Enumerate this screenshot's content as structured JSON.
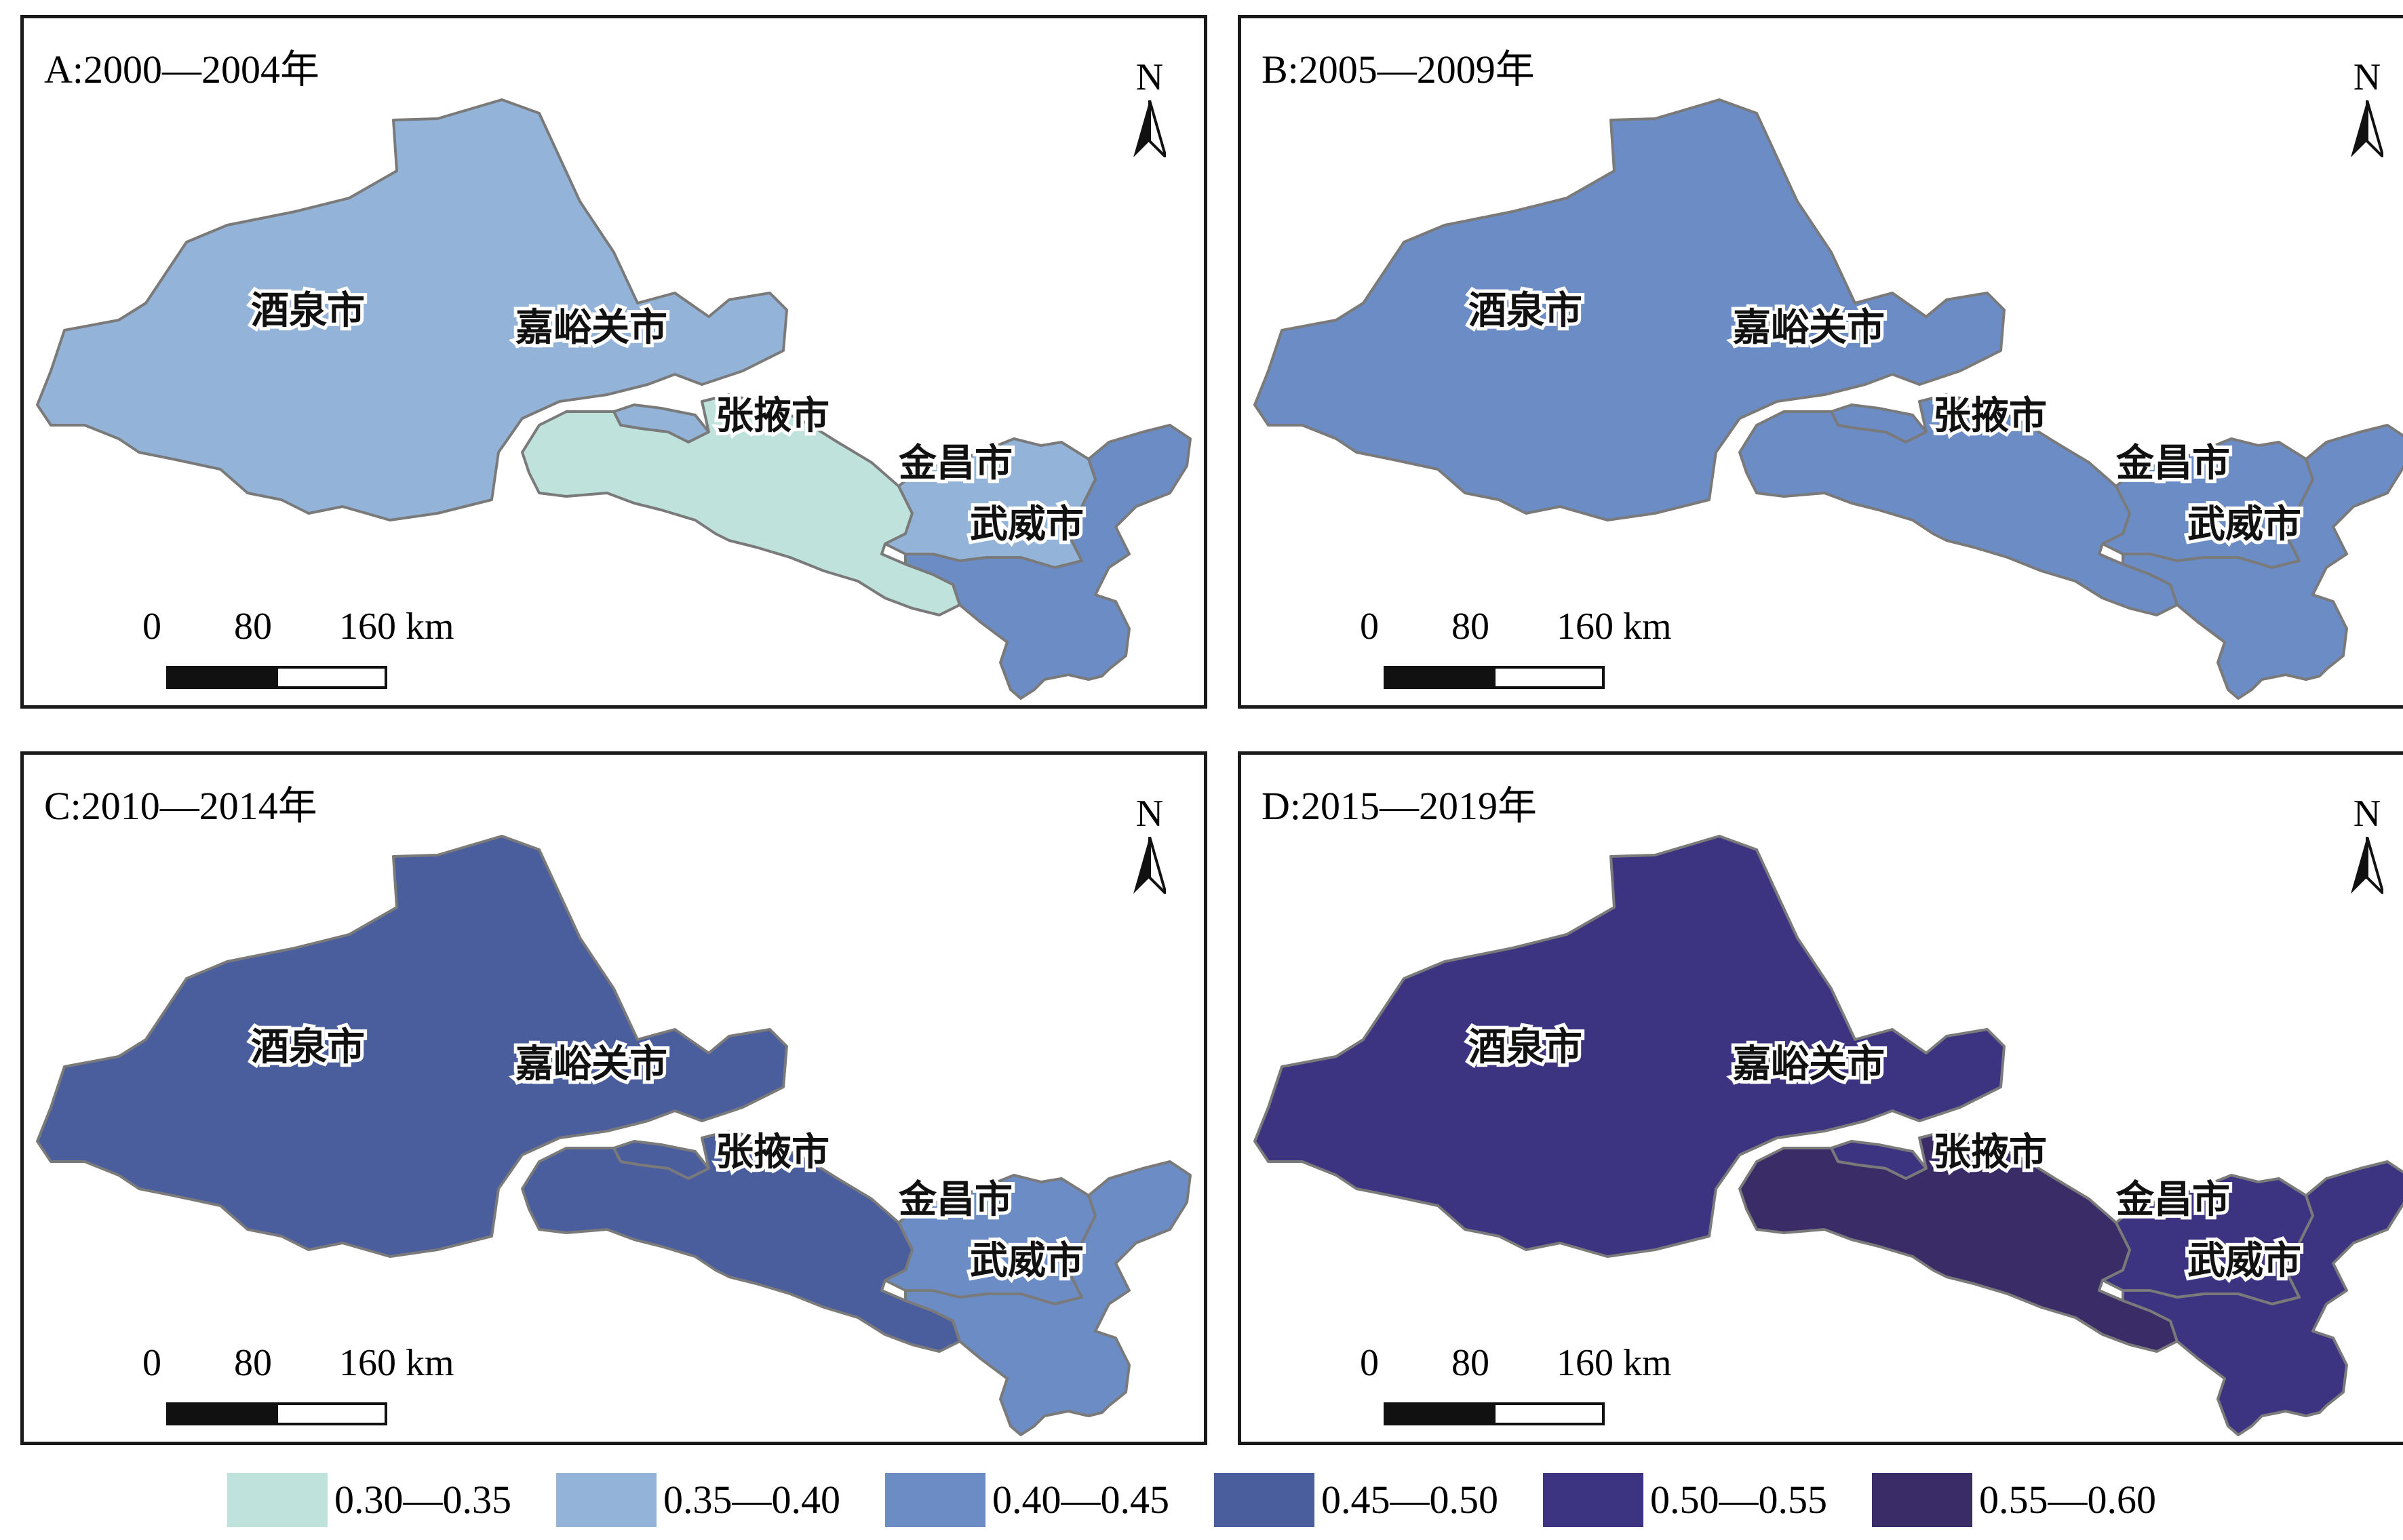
{
  "panels": [
    {
      "title": "A:2000—2004年",
      "fills": {
        "jiuquan": "#93b4d8",
        "jiayuguan": "#93b4d8",
        "zhangye": "#bfe3dc",
        "jinchang": "#93b4d8",
        "wuwei": "#6b8cc4"
      }
    },
    {
      "title": "B:2005—2009年",
      "fills": {
        "jiuquan": "#6b8cc4",
        "jiayuguan": "#6b8cc4",
        "zhangye": "#6b8cc4",
        "jinchang": "#6b8cc4",
        "wuwei": "#6b8cc4"
      }
    },
    {
      "title": "C:2010—2014年",
      "fills": {
        "jiuquan": "#4a5e9e",
        "jiayuguan": "#4a5e9e",
        "zhangye": "#4a5e9e",
        "jinchang": "#6b8cc4",
        "wuwei": "#6b8cc4"
      }
    },
    {
      "title": "D:2015—2019年",
      "fills": {
        "jiuquan": "#3c3480",
        "jiayuguan": "#3c3480",
        "zhangye": "#3a2c66",
        "jinchang": "#3c3480",
        "wuwei": "#3c3480"
      }
    }
  ],
  "cities": {
    "jiuquan": "酒泉市",
    "jiayuguan": "嘉峪关市",
    "zhangye": "张掖市",
    "jinchang": "金昌市",
    "wuwei": "武威市"
  },
  "north_label": "N",
  "scale_bar": {
    "ticks": [
      "0",
      "80",
      "160 km"
    ]
  },
  "legend": [
    {
      "label": "0.30—0.35",
      "color": "#bfe3dc"
    },
    {
      "label": "0.35—0.40",
      "color": "#93b4d8"
    },
    {
      "label": "0.40—0.45",
      "color": "#6b8cc4"
    },
    {
      "label": "0.45—0.50",
      "color": "#4a5e9e"
    },
    {
      "label": "0.50—0.55",
      "color": "#3c3480"
    },
    {
      "label": "0.55—0.60",
      "color": "#3a2c66"
    }
  ]
}
